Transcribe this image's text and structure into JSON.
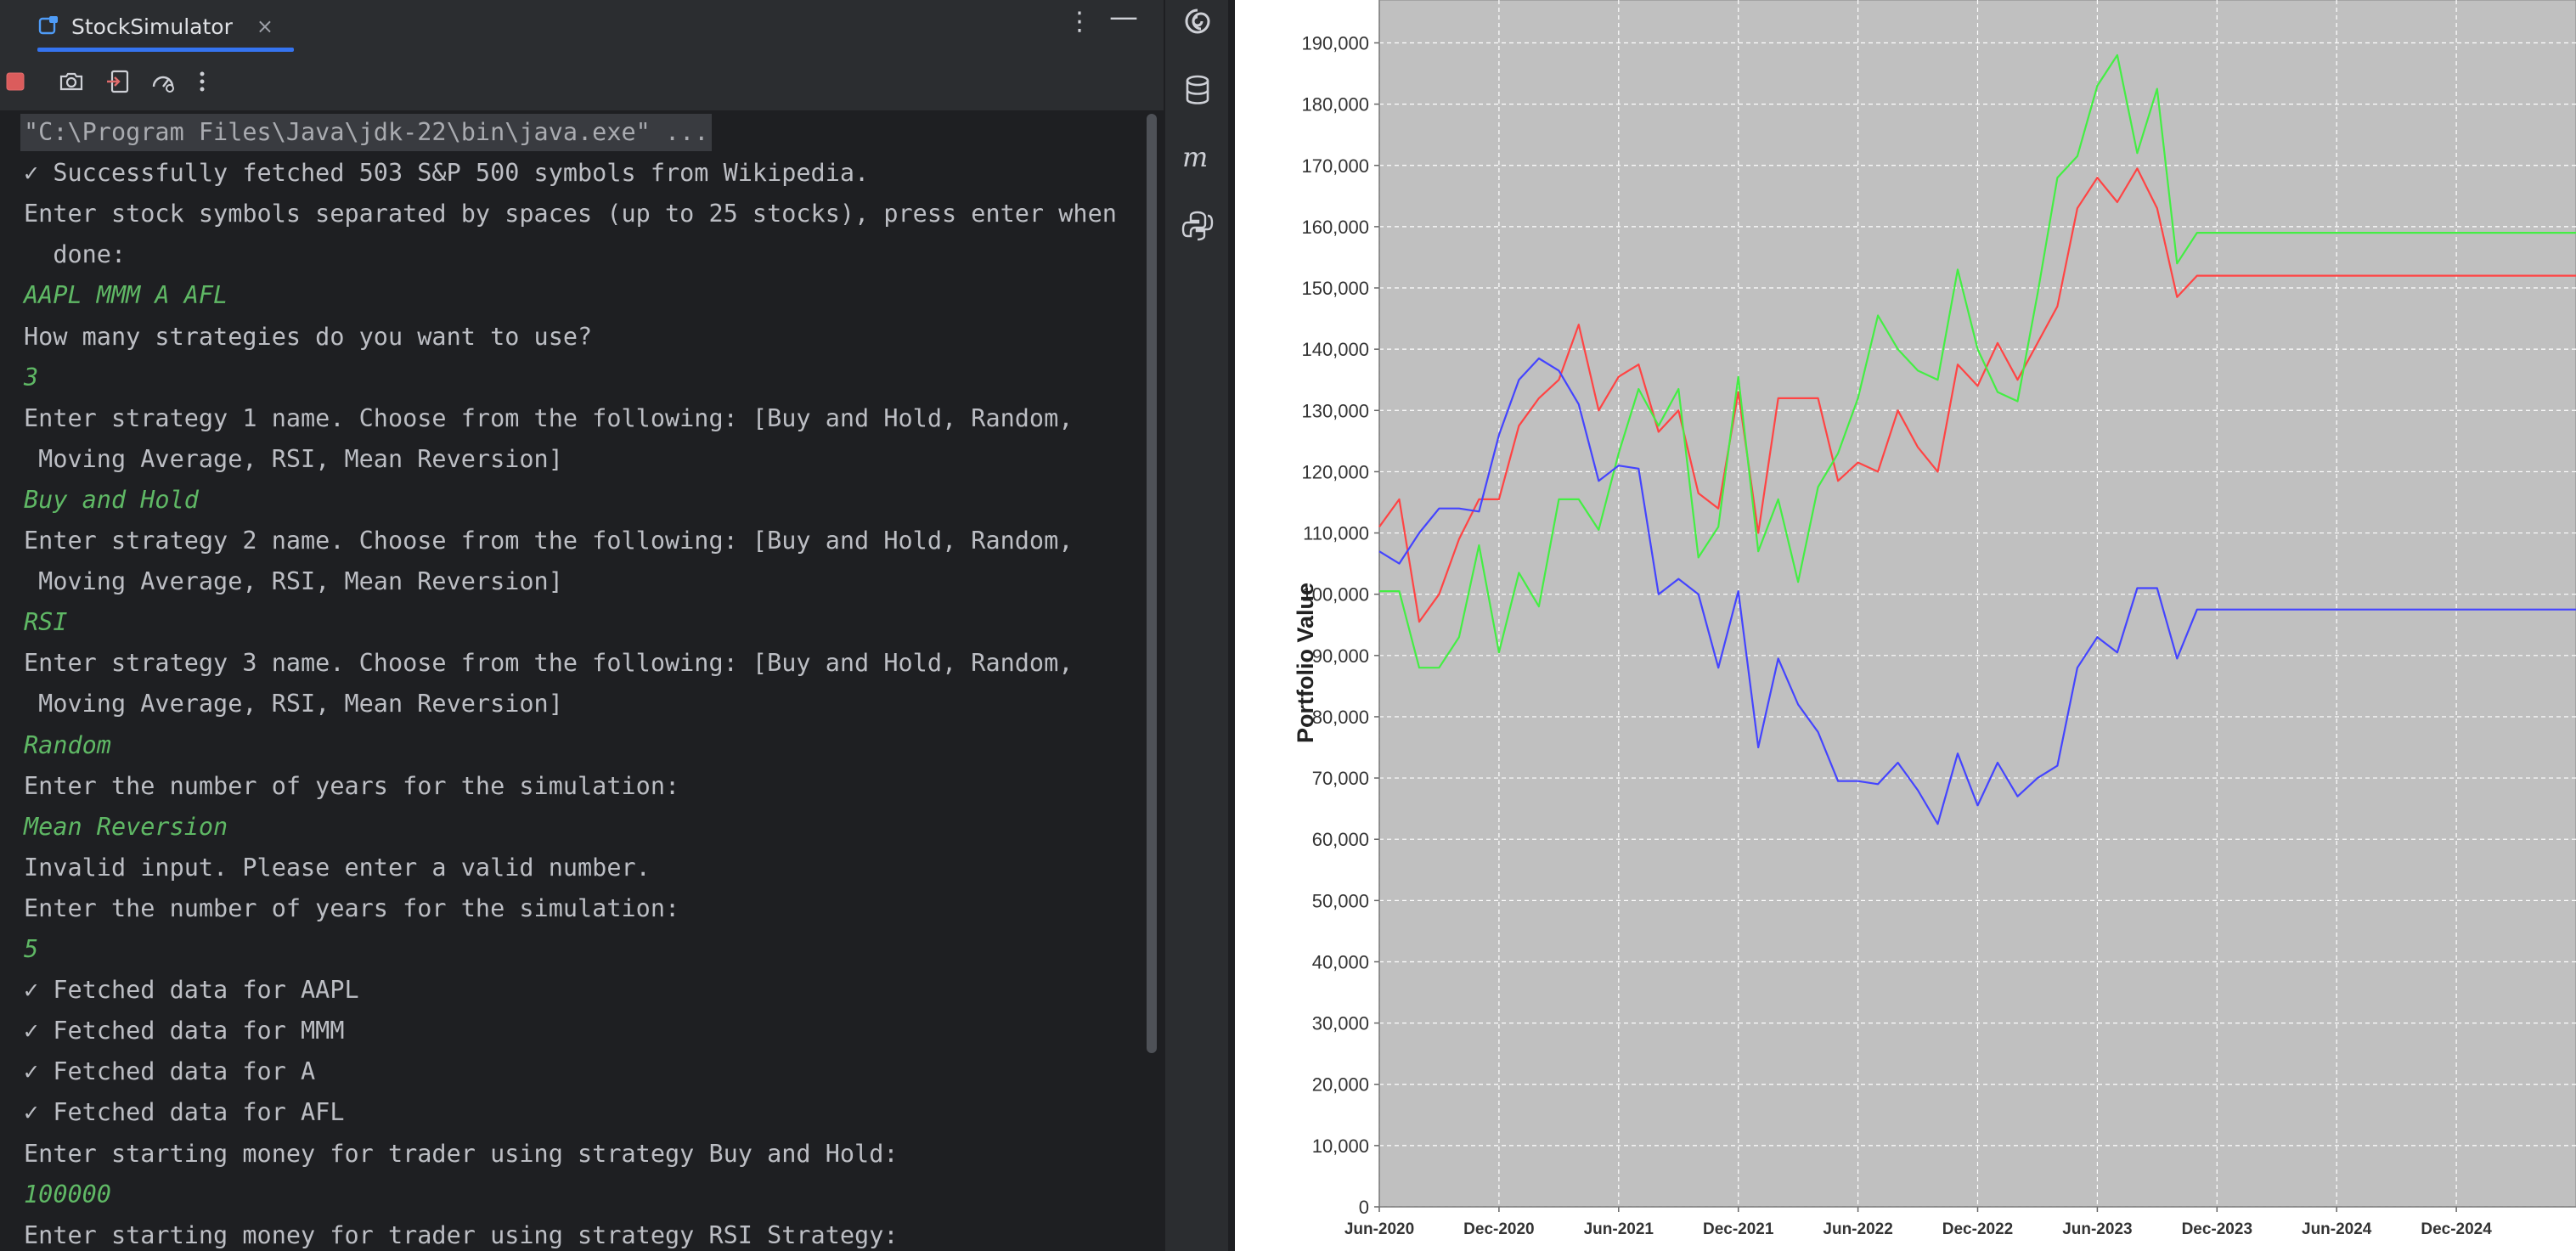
{
  "ide": {
    "tab_title": "StockSimulator",
    "tab_close": "×",
    "more": "⋮",
    "minimize": "—"
  },
  "console": {
    "lines": [
      {
        "text": "\"C:\\Program Files\\Java\\jdk-22\\bin\\java.exe\" ...",
        "kind": "cmd"
      },
      {
        "text": "✓ Successfully fetched 503 S&P 500 symbols from Wikipedia.",
        "kind": "out"
      },
      {
        "text": "Enter stock symbols separated by spaces (up to 25 stocks), press enter when",
        "kind": "out"
      },
      {
        "text": "  done:",
        "kind": "out"
      },
      {
        "text": "AAPL MMM A AFL",
        "kind": "input"
      },
      {
        "text": "How many strategies do you want to use?",
        "kind": "out"
      },
      {
        "text": "3",
        "kind": "input"
      },
      {
        "text": "Enter strategy 1 name. Choose from the following: [Buy and Hold, Random,",
        "kind": "out"
      },
      {
        "text": " Moving Average, RSI, Mean Reversion]",
        "kind": "out"
      },
      {
        "text": "Buy and Hold",
        "kind": "input"
      },
      {
        "text": "Enter strategy 2 name. Choose from the following: [Buy and Hold, Random,",
        "kind": "out"
      },
      {
        "text": " Moving Average, RSI, Mean Reversion]",
        "kind": "out"
      },
      {
        "text": "RSI",
        "kind": "input"
      },
      {
        "text": "Enter strategy 3 name. Choose from the following: [Buy and Hold, Random,",
        "kind": "out"
      },
      {
        "text": " Moving Average, RSI, Mean Reversion]",
        "kind": "out"
      },
      {
        "text": "Random",
        "kind": "input"
      },
      {
        "text": "Enter the number of years for the simulation:",
        "kind": "out"
      },
      {
        "text": "Mean Reversion",
        "kind": "input"
      },
      {
        "text": "Invalid input. Please enter a valid number.",
        "kind": "out"
      },
      {
        "text": "Enter the number of years for the simulation:",
        "kind": "out"
      },
      {
        "text": "5",
        "kind": "input"
      },
      {
        "text": "✓ Fetched data for AAPL",
        "kind": "out"
      },
      {
        "text": "✓ Fetched data for MMM",
        "kind": "out"
      },
      {
        "text": "✓ Fetched data for A",
        "kind": "out"
      },
      {
        "text": "✓ Fetched data for AFL",
        "kind": "out"
      },
      {
        "text": "Enter starting money for trader using strategy Buy and Hold:",
        "kind": "out"
      },
      {
        "text": "100000",
        "kind": "input"
      },
      {
        "text": "Enter starting money for trader using strategy RSI Strategy:",
        "kind": "out"
      }
    ]
  },
  "toolstrip": {
    "icons": [
      "ai-assistant-icon",
      "database-icon",
      "maven-icon",
      "python-icon"
    ]
  },
  "chart_data": {
    "type": "line",
    "title": "",
    "xlabel": "",
    "ylabel": "Portfolio Value",
    "ylim": [
      0,
      197000
    ],
    "yticks": [
      0,
      10000,
      20000,
      30000,
      40000,
      50000,
      60000,
      70000,
      80000,
      90000,
      100000,
      110000,
      120000,
      130000,
      140000,
      150000,
      160000,
      170000,
      180000,
      190000
    ],
    "ytick_labels": [
      "0",
      "10,000",
      "20,000",
      "30,000",
      "40,000",
      "50,000",
      "60,000",
      "70,000",
      "80,000",
      "90,000",
      "100,000",
      "110,000",
      "120,000",
      "130,000",
      "140,000",
      "150,000",
      "160,000",
      "170,000",
      "180,000",
      "190,000"
    ],
    "xlim": [
      "2020-06",
      "2025-06"
    ],
    "xticks": [
      "2020-06",
      "2020-12",
      "2021-06",
      "2021-12",
      "2022-06",
      "2022-12",
      "2023-06",
      "2023-12",
      "2024-06",
      "2024-12"
    ],
    "xtick_labels": [
      "Jun-2020",
      "Dec-2020",
      "Jun-2021",
      "Dec-2021",
      "Jun-2022",
      "Dec-2022",
      "Jun-2023",
      "Dec-2023",
      "Jun-2024",
      "Dec-2024"
    ],
    "grid": true,
    "background": "#c0c0c0",
    "x": [
      "2020-06",
      "2020-07",
      "2020-08",
      "2020-09",
      "2020-10",
      "2020-11",
      "2020-12",
      "2021-01",
      "2021-02",
      "2021-03",
      "2021-04",
      "2021-05",
      "2021-06",
      "2021-07",
      "2021-08",
      "2021-09",
      "2021-10",
      "2021-11",
      "2021-12",
      "2022-01",
      "2022-02",
      "2022-03",
      "2022-04",
      "2022-05",
      "2022-06",
      "2022-07",
      "2022-08",
      "2022-09",
      "2022-10",
      "2022-11",
      "2022-12",
      "2023-01",
      "2023-02",
      "2023-03",
      "2023-04",
      "2023-05",
      "2023-06",
      "2023-07",
      "2023-08",
      "2023-09",
      "2023-10",
      "2023-11",
      "2023-12",
      "2024-03",
      "2024-06",
      "2024-09",
      "2024-12",
      "2025-03",
      "2025-06"
    ],
    "series": [
      {
        "color": "#ff4444",
        "values": [
          111000,
          115500,
          95500,
          100000,
          109000,
          115500,
          115500,
          127500,
          132000,
          135000,
          144000,
          130000,
          135500,
          137500,
          126500,
          130000,
          116500,
          114000,
          133000,
          110000,
          132000,
          132000,
          132000,
          118500,
          121500,
          120000,
          130000,
          124000,
          120000,
          137500,
          134000,
          141000,
          135000,
          141000,
          147000,
          163000,
          168000,
          164000,
          169500,
          163000,
          148500,
          152000,
          152000,
          152000,
          152000,
          152000,
          152000,
          152000,
          152000
        ]
      },
      {
        "color": "#44ee44",
        "values": [
          100500,
          100500,
          88000,
          88000,
          93000,
          108000,
          90500,
          103500,
          98000,
          115500,
          115500,
          110500,
          123000,
          133500,
          127500,
          133500,
          106000,
          111000,
          135500,
          107000,
          115500,
          102000,
          117500,
          123000,
          132000,
          145500,
          140000,
          136500,
          135000,
          153000,
          140000,
          133000,
          131500,
          149000,
          168000,
          171500,
          183000,
          188000,
          172000,
          182500,
          154000,
          159000,
          159000,
          159000,
          159000,
          159000,
          159000,
          159000,
          159000
        ]
      },
      {
        "color": "#4444ff",
        "values": [
          107000,
          105000,
          110000,
          114000,
          114000,
          113500,
          126000,
          135000,
          138500,
          136500,
          131000,
          118500,
          121000,
          120500,
          100000,
          102500,
          100000,
          88000,
          100500,
          75000,
          89500,
          82000,
          77500,
          69500,
          69500,
          69000,
          72500,
          68000,
          62500,
          74000,
          65500,
          72500,
          67000,
          70000,
          72000,
          88000,
          93000,
          90500,
          101000,
          101000,
          89500,
          97500,
          97500,
          97500,
          97500,
          97500,
          97500,
          97500,
          97500
        ]
      }
    ]
  }
}
